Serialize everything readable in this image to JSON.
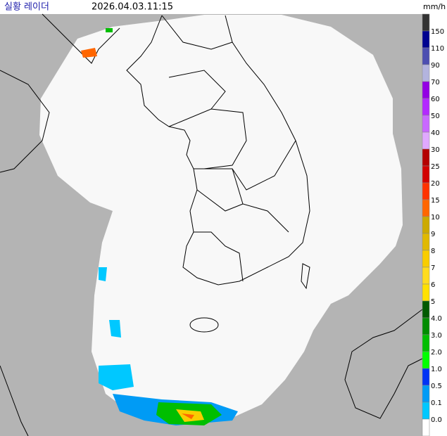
{
  "header": {
    "title": "실황 레이더",
    "time": "2026.04.03.11:15",
    "unit": "mm/h"
  },
  "legend": {
    "labels": [
      "150",
      "110",
      "90",
      "70",
      "60",
      "50",
      "40",
      "30",
      "25",
      "20",
      "15",
      "10",
      "9",
      "8",
      "7",
      "6",
      "5",
      "4.0",
      "3.0",
      "2.0",
      "1.0",
      "0.5",
      "0.1",
      "0.0"
    ],
    "colors": [
      "#333333",
      "#000390",
      "#4c4eb1",
      "#b3b4de",
      "#9300e4",
      "#b329ff",
      "#c969ff",
      "#e0a9ff",
      "#b40000",
      "#d20000",
      "#ff3200",
      "#ff6600",
      "#ccaa00",
      "#e0b900",
      "#f9cd00",
      "#ffdc1f",
      "#ffe100",
      "#005a00",
      "#008c00",
      "#00be00",
      "#00ff00",
      "#0033f5",
      "#009bf5",
      "#00c8ff",
      "#ffffff"
    ]
  }
}
